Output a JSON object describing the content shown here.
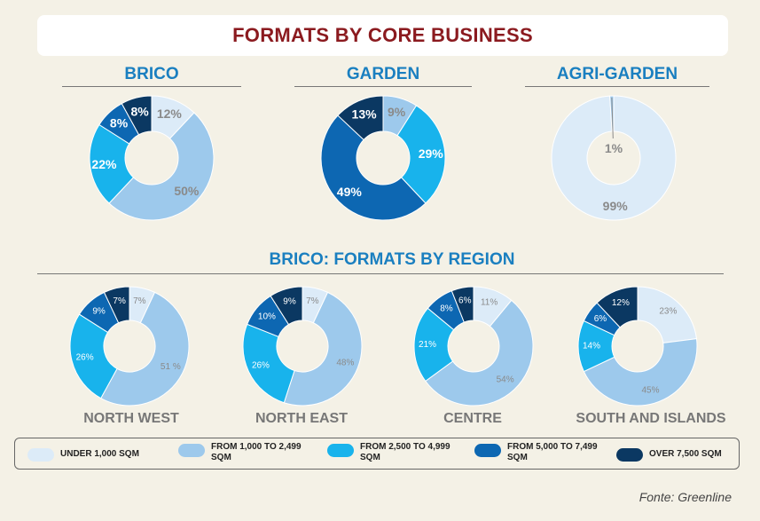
{
  "title": "FORMATS BY CORE BUSINESS",
  "colors": {
    "under_1000": "#dcebf8",
    "from_1000_2499": "#9dc9ec",
    "from_2500_4999": "#18b3ec",
    "from_5000_7499": "#0d67b2",
    "over_7500": "#0b3862",
    "title_red": "#8b1a1f",
    "section_blue": "#1a7fc0"
  },
  "section_titles": {
    "brico": "BRICO",
    "garden": "GARDEN",
    "agri_garden": "AGRI-GARDEN",
    "region": "BRICO: FORMATS BY REGION"
  },
  "legend": [
    {
      "label": "UNDER 1,000 SQM",
      "color": "#dcebf8"
    },
    {
      "label": "FROM 1,000 TO 2,499 SQM",
      "color": "#9dc9ec"
    },
    {
      "label": "FROM 2,500 TO 4,999 SQM",
      "color": "#18b3ec"
    },
    {
      "label": "FROM 5,000 TO 7,499 SQM",
      "color": "#0d67b2"
    },
    {
      "label": "OVER 7,500 SQM",
      "color": "#0b3862"
    }
  ],
  "source": "Fonte: Greenline",
  "chart_data": [
    {
      "type": "pie",
      "title": "BRICO",
      "categories": [
        "UNDER 1,000 SQM",
        "FROM 1,000 TO 2,499 SQM",
        "FROM 2,500 TO 4,999 SQM",
        "FROM 5,000 TO 7,499 SQM",
        "OVER 7,500 SQM"
      ],
      "values": [
        12,
        50,
        22,
        8,
        8
      ],
      "labels": [
        "12%",
        "50%",
        "22%",
        "8%",
        "8%"
      ]
    },
    {
      "type": "pie",
      "title": "GARDEN",
      "categories": [
        "UNDER 1,000 SQM",
        "FROM 1,000 TO 2,499 SQM",
        "FROM 2,500 TO 4,999 SQM",
        "FROM 5,000 TO 7,499 SQM",
        "OVER 7,500 SQM"
      ],
      "values": [
        0,
        9,
        29,
        49,
        13
      ],
      "labels": [
        "",
        "9%",
        "29%",
        "49%",
        "13%"
      ]
    },
    {
      "type": "pie",
      "title": "AGRI-GARDEN",
      "categories": [
        "UNDER 1,000 SQM",
        "FROM 1,000 TO 2,499 SQM",
        "FROM 2,500 TO 4,999 SQM",
        "FROM 5,000 TO 7,499 SQM",
        "OVER 7,500 SQM"
      ],
      "values": [
        99,
        1,
        0,
        0,
        0
      ],
      "labels": [
        "99%",
        "1%",
        "",
        "",
        ""
      ]
    },
    {
      "type": "pie",
      "title": "NORTH WEST",
      "categories": [
        "UNDER 1,000 SQM",
        "FROM 1,000 TO 2,499 SQM",
        "FROM 2,500 TO 4,999 SQM",
        "FROM 5,000 TO 7,499 SQM",
        "OVER 7,500 SQM"
      ],
      "values": [
        7,
        51,
        26,
        9,
        7
      ],
      "labels": [
        "7%",
        "51 %",
        "26%",
        "9%",
        "7%"
      ]
    },
    {
      "type": "pie",
      "title": "NORTH EAST",
      "categories": [
        "UNDER 1,000 SQM",
        "FROM 1,000 TO 2,499 SQM",
        "FROM 2,500 TO 4,999 SQM",
        "FROM 5,000 TO 7,499 SQM",
        "OVER 7,500 SQM"
      ],
      "values": [
        7,
        48,
        26,
        10,
        9
      ],
      "labels": [
        "7%",
        "48%",
        "26%",
        "10%",
        "9%"
      ]
    },
    {
      "type": "pie",
      "title": "CENTRE",
      "categories": [
        "UNDER 1,000 SQM",
        "FROM 1,000 TO 2,499 SQM",
        "FROM 2,500 TO 4,999 SQM",
        "FROM 5,000 TO 7,499 SQM",
        "OVER 7,500 SQM"
      ],
      "values": [
        11,
        54,
        21,
        8,
        6
      ],
      "labels": [
        "11%",
        "54%",
        "21%",
        "8%",
        "6%"
      ]
    },
    {
      "type": "pie",
      "title": "SOUTH AND ISLANDS",
      "categories": [
        "UNDER 1,000 SQM",
        "FROM 1,000 TO 2,499 SQM",
        "FROM 2,500 TO 4,999 SQM",
        "FROM 5,000 TO 7,499 SQM",
        "OVER 7,500 SQM"
      ],
      "values": [
        23,
        45,
        14,
        6,
        12
      ],
      "labels": [
        "23%",
        "45%",
        "14%",
        "6%",
        "12%"
      ]
    }
  ]
}
